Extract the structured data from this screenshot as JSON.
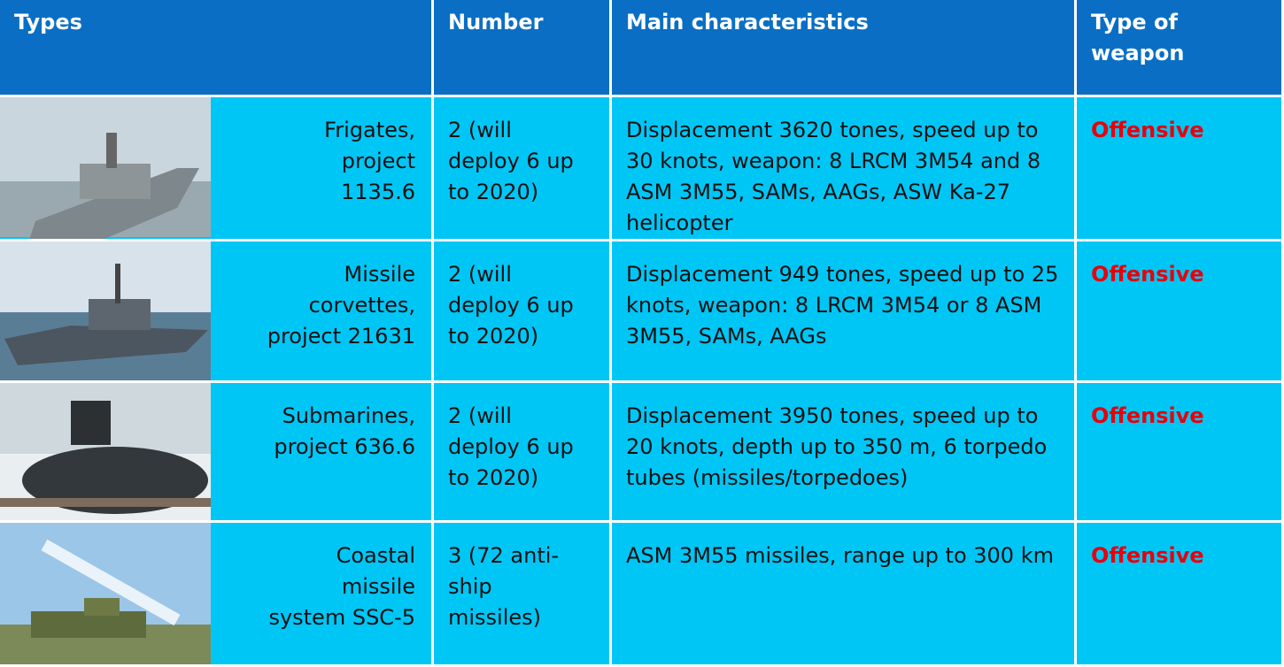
{
  "header": {
    "columns": [
      "Types",
      "Number",
      "Main characteristics",
      "Type of weapon"
    ]
  },
  "table": {
    "rows": [
      [
        "Frigates, project 1135.6",
        "2 (will deploy 6 up to 2020)",
        "Displacement 3620 tones, speed up to 30 knots, weapon: 8 LRCM 3M54 and 8 ASM 3M55, SAMs, AAGs, ASW Ka-27 helicopter",
        "Offensive"
      ],
      [
        "Missile corvettes, project 21631",
        "2 (will deploy 6 up to 2020)",
        "Displacement 949 tones, speed up to 25 knots, weapon: 8 LRCM 3M54 or 8 ASM 3M55, SAMs, AAGs",
        "Offensive"
      ],
      [
        "Submarines, project 636.6",
        "2 (will deploy 6 up to 2020)",
        "Displacement 3950 tones, speed up to 20 knots, depth up to 350 m, 6 torpedo tubes (missiles/torpedoes)",
        "Offensive"
      ],
      [
        "Coastal missile system SSC-5",
        "3 (72 anti-ship missiles)",
        "ASM 3M55 missiles, range up to 300 km",
        "Offensive"
      ]
    ]
  }
}
